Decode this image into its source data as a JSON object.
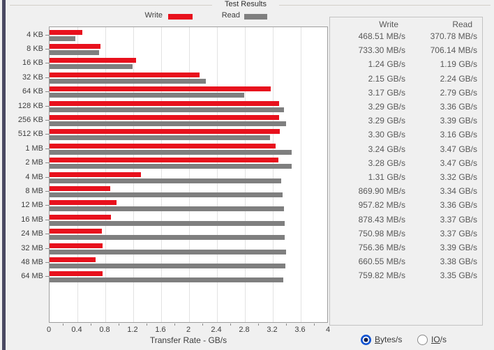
{
  "window": {
    "title": "Test Results"
  },
  "legend": {
    "write_label": "Write",
    "read_label": "Read",
    "write_color": "#e8111d",
    "read_color": "#7f7f7f"
  },
  "chart_data": {
    "type": "bar",
    "orientation": "horizontal",
    "title": "Test Results",
    "xlabel": "Transfer Rate - GB/s",
    "xlim": [
      0,
      4
    ],
    "x_ticks": [
      "0",
      "0.4",
      "0.8",
      "1.2",
      "1.6",
      "2",
      "2.4",
      "2.8",
      "3.2",
      "3.6",
      "4"
    ],
    "grid": true,
    "legend_position": "top",
    "categories": [
      "4 KB",
      "8 KB",
      "16 KB",
      "32 KB",
      "64 KB",
      "128 KB",
      "256 KB",
      "512 KB",
      "1 MB",
      "2 MB",
      "4 MB",
      "8 MB",
      "12 MB",
      "16 MB",
      "24 MB",
      "32 MB",
      "48 MB",
      "64 MB"
    ],
    "series": [
      {
        "name": "Write",
        "color": "#e8111d",
        "values_gbps": [
          0.46851,
          0.7333,
          1.24,
          2.15,
          3.17,
          3.29,
          3.29,
          3.3,
          3.24,
          3.28,
          1.31,
          0.8699,
          0.95782,
          0.87843,
          0.75098,
          0.75636,
          0.66055,
          0.75982
        ]
      },
      {
        "name": "Read",
        "color": "#7f7f7f",
        "values_gbps": [
          0.37078,
          0.70614,
          1.19,
          2.24,
          2.79,
          3.36,
          3.39,
          3.16,
          3.47,
          3.47,
          3.32,
          3.34,
          3.36,
          3.37,
          3.37,
          3.39,
          3.38,
          3.35
        ]
      }
    ]
  },
  "results_table": {
    "headers": [
      "Write",
      "Read"
    ],
    "rows": [
      [
        "468.51 MB/s",
        "370.78 MB/s"
      ],
      [
        "733.30 MB/s",
        "706.14 MB/s"
      ],
      [
        "1.24 GB/s",
        "1.19 GB/s"
      ],
      [
        "2.15 GB/s",
        "2.24 GB/s"
      ],
      [
        "3.17 GB/s",
        "2.79 GB/s"
      ],
      [
        "3.29 GB/s",
        "3.36 GB/s"
      ],
      [
        "3.29 GB/s",
        "3.39 GB/s"
      ],
      [
        "3.30 GB/s",
        "3.16 GB/s"
      ],
      [
        "3.24 GB/s",
        "3.47 GB/s"
      ],
      [
        "3.28 GB/s",
        "3.47 GB/s"
      ],
      [
        "1.31 GB/s",
        "3.32 GB/s"
      ],
      [
        "869.90 MB/s",
        "3.34 GB/s"
      ],
      [
        "957.82 MB/s",
        "3.36 GB/s"
      ],
      [
        "878.43 MB/s",
        "3.37 GB/s"
      ],
      [
        "750.98 MB/s",
        "3.37 GB/s"
      ],
      [
        "756.36 MB/s",
        "3.39 GB/s"
      ],
      [
        "660.55 MB/s",
        "3.38 GB/s"
      ],
      [
        "759.82 MB/s",
        "3.35 GB/s"
      ]
    ]
  },
  "controls": {
    "bytes_radio": {
      "label": "Bytes/s",
      "accel": "B",
      "selected": true
    },
    "io_radio": {
      "label": "IO/s",
      "accel": "IO",
      "selected": false
    },
    "radio_accent_color": "#1254d2"
  }
}
